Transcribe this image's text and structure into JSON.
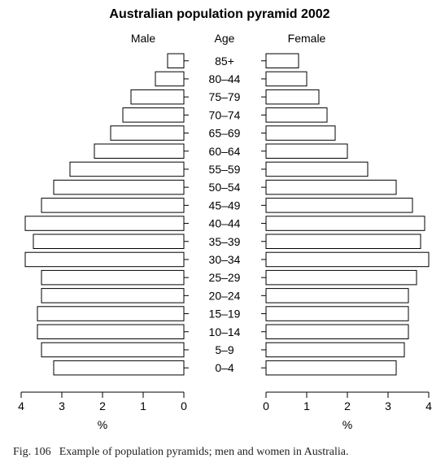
{
  "chart_data": {
    "type": "bar",
    "orientation": "horizontal",
    "layout": "population-pyramid",
    "title": "Australian population pyramid 2002",
    "category_label": "Age",
    "categories": [
      "85+",
      "80–44",
      "75–79",
      "70–74",
      "65–69",
      "60–64",
      "55–59",
      "50–54",
      "45–49",
      "40–44",
      "35–39",
      "30–34",
      "25–29",
      "20–24",
      "15–19",
      "10–14",
      "5–9",
      "0–4"
    ],
    "series": [
      {
        "name": "Male",
        "values": [
          0.4,
          0.7,
          1.3,
          1.5,
          1.8,
          2.2,
          2.8,
          3.2,
          3.5,
          3.9,
          3.7,
          3.9,
          3.5,
          3.5,
          3.6,
          3.6,
          3.5,
          3.2
        ]
      },
      {
        "name": "Female",
        "values": [
          0.8,
          1.0,
          1.3,
          1.5,
          1.7,
          2.0,
          2.5,
          3.2,
          3.6,
          3.9,
          3.8,
          4.0,
          3.7,
          3.5,
          3.5,
          3.5,
          3.4,
          3.2
        ]
      }
    ],
    "xlim": [
      0,
      4
    ],
    "xticks": [
      0,
      1,
      2,
      3,
      4
    ],
    "xlabel": "%",
    "grid": false
  },
  "caption": {
    "label": "Fig. 106",
    "text": "Example of population pyramids; men and women in Australia."
  }
}
